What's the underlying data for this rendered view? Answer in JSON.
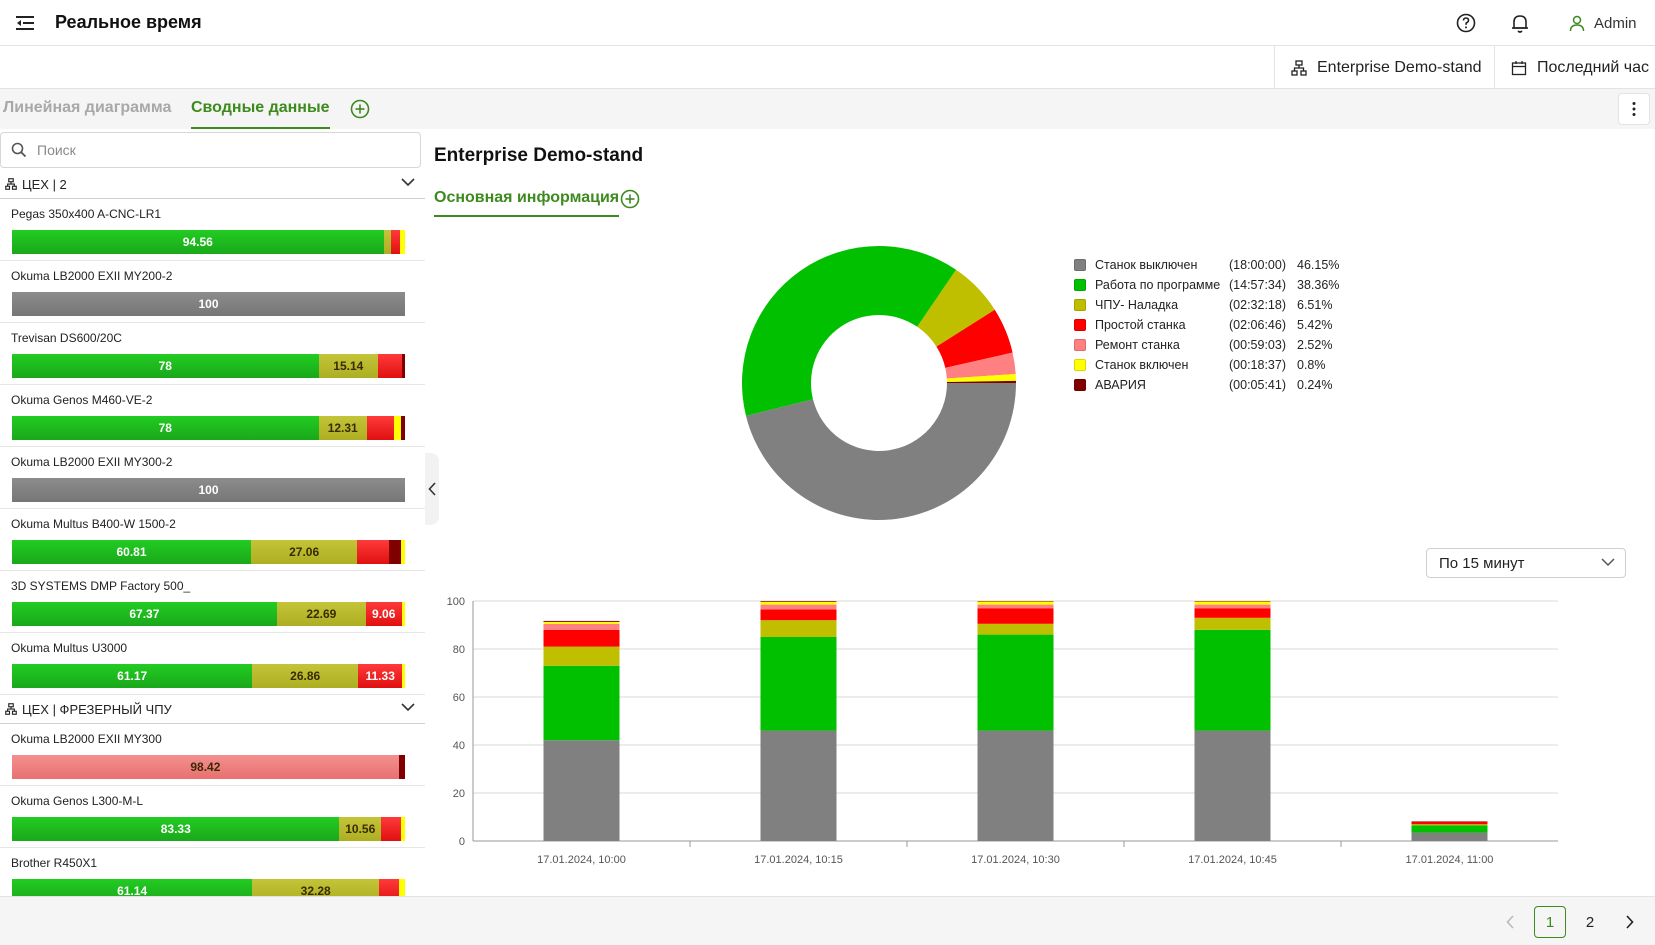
{
  "header": {
    "title": "Реальное время",
    "user": "Admin",
    "icons": [
      "menu-icon",
      "help-icon",
      "bell-icon",
      "user-icon"
    ]
  },
  "filters": {
    "enterprise": "Enterprise Demo-stand",
    "period": "Последний час"
  },
  "tabs": [
    {
      "label": "Линейная диаграмма",
      "active": false
    },
    {
      "label": "Сводные данные",
      "active": true
    }
  ],
  "search": {
    "placeholder": "Поиск",
    "value": ""
  },
  "colors": {
    "off": "#808080",
    "program": "#00c000",
    "setup": "#bfbf00",
    "idle": "#ff0000",
    "repair": "#ff8080",
    "on": "#ffff00",
    "alarm": "#800000",
    "accent": "#3d8a1f"
  },
  "groups": [
    {
      "name": "ЦЕХ | 2",
      "machines": [
        {
          "name": "Pegas 350x400 A-CNC-LR1",
          "segments": [
            {
              "state": "program",
              "value": 94.56,
              "label": "94.56"
            },
            {
              "state": "setup",
              "value": 2.0,
              "label": ""
            },
            {
              "state": "idle",
              "value": 2.2,
              "label": ""
            },
            {
              "state": "on",
              "value": 1.24,
              "label": ""
            }
          ]
        },
        {
          "name": "Okuma LB2000 EXII MY200-2",
          "segments": [
            {
              "state": "off",
              "value": 100,
              "label": "100"
            }
          ]
        },
        {
          "name": "Trevisan DS600/20C",
          "segments": [
            {
              "state": "program",
              "value": 78,
              "label": "78"
            },
            {
              "state": "setup",
              "value": 15.14,
              "label": "15.14"
            },
            {
              "state": "idle",
              "value": 6.0,
              "label": ""
            },
            {
              "state": "alarm",
              "value": 0.86,
              "label": ""
            }
          ]
        },
        {
          "name": "Okuma Genos M460-VE-2",
          "segments": [
            {
              "state": "program",
              "value": 78,
              "label": "78"
            },
            {
              "state": "setup",
              "value": 12.31,
              "label": "12.31"
            },
            {
              "state": "idle",
              "value": 7.0,
              "label": ""
            },
            {
              "state": "on",
              "value": 1.8,
              "label": ""
            },
            {
              "state": "alarm",
              "value": 0.89,
              "label": ""
            }
          ]
        },
        {
          "name": "Okuma LB2000 EXII MY300-2",
          "segments": [
            {
              "state": "off",
              "value": 100,
              "label": "100"
            }
          ]
        },
        {
          "name": "Okuma Multus B400-W 1500-2",
          "segments": [
            {
              "state": "program",
              "value": 60.81,
              "label": "60.81"
            },
            {
              "state": "setup",
              "value": 27.06,
              "label": "27.06"
            },
            {
              "state": "idle",
              "value": 8.0,
              "label": ""
            },
            {
              "state": "alarm",
              "value": 3.0,
              "label": ""
            },
            {
              "state": "on",
              "value": 1.13,
              "label": ""
            }
          ]
        },
        {
          "name": "3D SYSTEMS DMP Factory 500_",
          "segments": [
            {
              "state": "program",
              "value": 67.37,
              "label": "67.37"
            },
            {
              "state": "setup",
              "value": 22.69,
              "label": "22.69"
            },
            {
              "state": "idle",
              "value": 9.06,
              "label": "9.06"
            },
            {
              "state": "on",
              "value": 0.88,
              "label": ""
            }
          ]
        },
        {
          "name": "Okuma Multus U3000",
          "segments": [
            {
              "state": "program",
              "value": 61.17,
              "label": "61.17"
            },
            {
              "state": "setup",
              "value": 26.86,
              "label": "26.86"
            },
            {
              "state": "idle",
              "value": 11.33,
              "label": "11.33"
            },
            {
              "state": "on",
              "value": 0.64,
              "label": ""
            }
          ]
        }
      ]
    },
    {
      "name": "ЦЕХ | ФРЕЗЕРНЫЙ ЧПУ",
      "machines": [
        {
          "name": "Okuma LB2000 EXII MY300",
          "segments": [
            {
              "state": "repair",
              "value": 98.42,
              "label": "98.42"
            },
            {
              "state": "alarm",
              "value": 1.58,
              "label": ""
            }
          ]
        },
        {
          "name": "Okuma Genos L300-M-L",
          "segments": [
            {
              "state": "program",
              "value": 83.33,
              "label": "83.33"
            },
            {
              "state": "setup",
              "value": 10.56,
              "label": "10.56"
            },
            {
              "state": "idle",
              "value": 5.0,
              "label": ""
            },
            {
              "state": "on",
              "value": 1.11,
              "label": ""
            }
          ]
        },
        {
          "name": "Brother R450X1",
          "segments": [
            {
              "state": "program",
              "value": 61.14,
              "label": "61.14"
            },
            {
              "state": "setup",
              "value": 32.28,
              "label": "32.28"
            },
            {
              "state": "idle",
              "value": 5.0,
              "label": ""
            },
            {
              "state": "on",
              "value": 1.58,
              "label": ""
            }
          ]
        }
      ]
    }
  ],
  "main": {
    "enterprise_title": "Enterprise Demo-stand",
    "subtab": "Основная информация",
    "period_select": "По 15 минут"
  },
  "chart_data": [
    {
      "type": "pie",
      "donut": true,
      "slices": [
        {
          "state": "off",
          "label": "Станок выключен",
          "duration": "(18:00:00)",
          "percent": "46.15%",
          "value": 46.15
        },
        {
          "state": "program",
          "label": "Работа по программе",
          "duration": "(14:57:34)",
          "percent": "38.36%",
          "value": 38.36
        },
        {
          "state": "setup",
          "label": "ЧПУ- Наладка",
          "duration": "(02:32:18)",
          "percent": "6.51%",
          "value": 6.51
        },
        {
          "state": "idle",
          "label": "Простой станка",
          "duration": "(02:06:46)",
          "percent": "5.42%",
          "value": 5.42
        },
        {
          "state": "repair",
          "label": "Ремонт станка",
          "duration": "(00:59:03)",
          "percent": "2.52%",
          "value": 2.52
        },
        {
          "state": "on",
          "label": "Станок включен",
          "duration": "(00:18:37)",
          "percent": "0.8%",
          "value": 0.8
        },
        {
          "state": "alarm",
          "label": "АВАРИЯ",
          "duration": "(00:05:41)",
          "percent": "0.24%",
          "value": 0.24
        }
      ],
      "legend_position": "right"
    },
    {
      "type": "bar",
      "stacked": true,
      "categories": [
        "17.01.2024, 10:00",
        "17.01.2024, 10:15",
        "17.01.2024, 10:30",
        "17.01.2024, 10:45",
        "17.01.2024, 11:00"
      ],
      "series": [
        {
          "state": "off",
          "values": [
            42,
            46,
            46,
            46,
            3.5
          ]
        },
        {
          "state": "program",
          "values": [
            31,
            39,
            40,
            42,
            3
          ]
        },
        {
          "state": "setup",
          "values": [
            8,
            7,
            4.5,
            5,
            0.5
          ]
        },
        {
          "state": "idle",
          "values": [
            7,
            4.5,
            6.5,
            4,
            1
          ]
        },
        {
          "state": "repair",
          "values": [
            2.5,
            2,
            1.5,
            1.5,
            0
          ]
        },
        {
          "state": "on",
          "values": [
            0.8,
            1.2,
            1.3,
            1.3,
            0
          ]
        },
        {
          "state": "alarm",
          "values": [
            0.4,
            0.3,
            0.2,
            0.2,
            0.2
          ]
        }
      ],
      "yticks": [
        0,
        20,
        40,
        60,
        80,
        100
      ],
      "ylim": [
        0,
        100
      ],
      "grid": true
    }
  ],
  "pagination": {
    "pages": [
      "1",
      "2"
    ],
    "current": "1"
  }
}
